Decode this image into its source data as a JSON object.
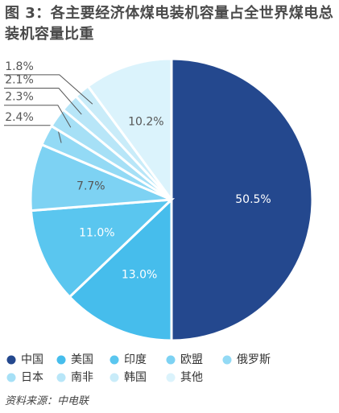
{
  "chart_data": {
    "type": "pie",
    "title": "图 3：各主要经济体煤电装机容量占全世界煤电总装机容量比重",
    "categories": [
      "中国",
      "美国",
      "印度",
      "欧盟",
      "俄罗斯",
      "日本",
      "南非",
      "韩国",
      "其他"
    ],
    "values": [
      50.5,
      13.0,
      11.0,
      7.7,
      2.4,
      2.3,
      2.1,
      1.8,
      10.2
    ],
    "value_labels": [
      "50.5%",
      "13.0%",
      "11.0%",
      "7.7%",
      "2.4%",
      "2.3%",
      "2.1%",
      "1.8%",
      "10.2%"
    ],
    "colors": [
      "#24488e",
      "#46bdec",
      "#5ac6ef",
      "#7dd2f3",
      "#93daf5",
      "#a6e0f6",
      "#b8e6f8",
      "#c9ecf9",
      "#dbf3fc"
    ],
    "source": "资料来源：中电联"
  }
}
